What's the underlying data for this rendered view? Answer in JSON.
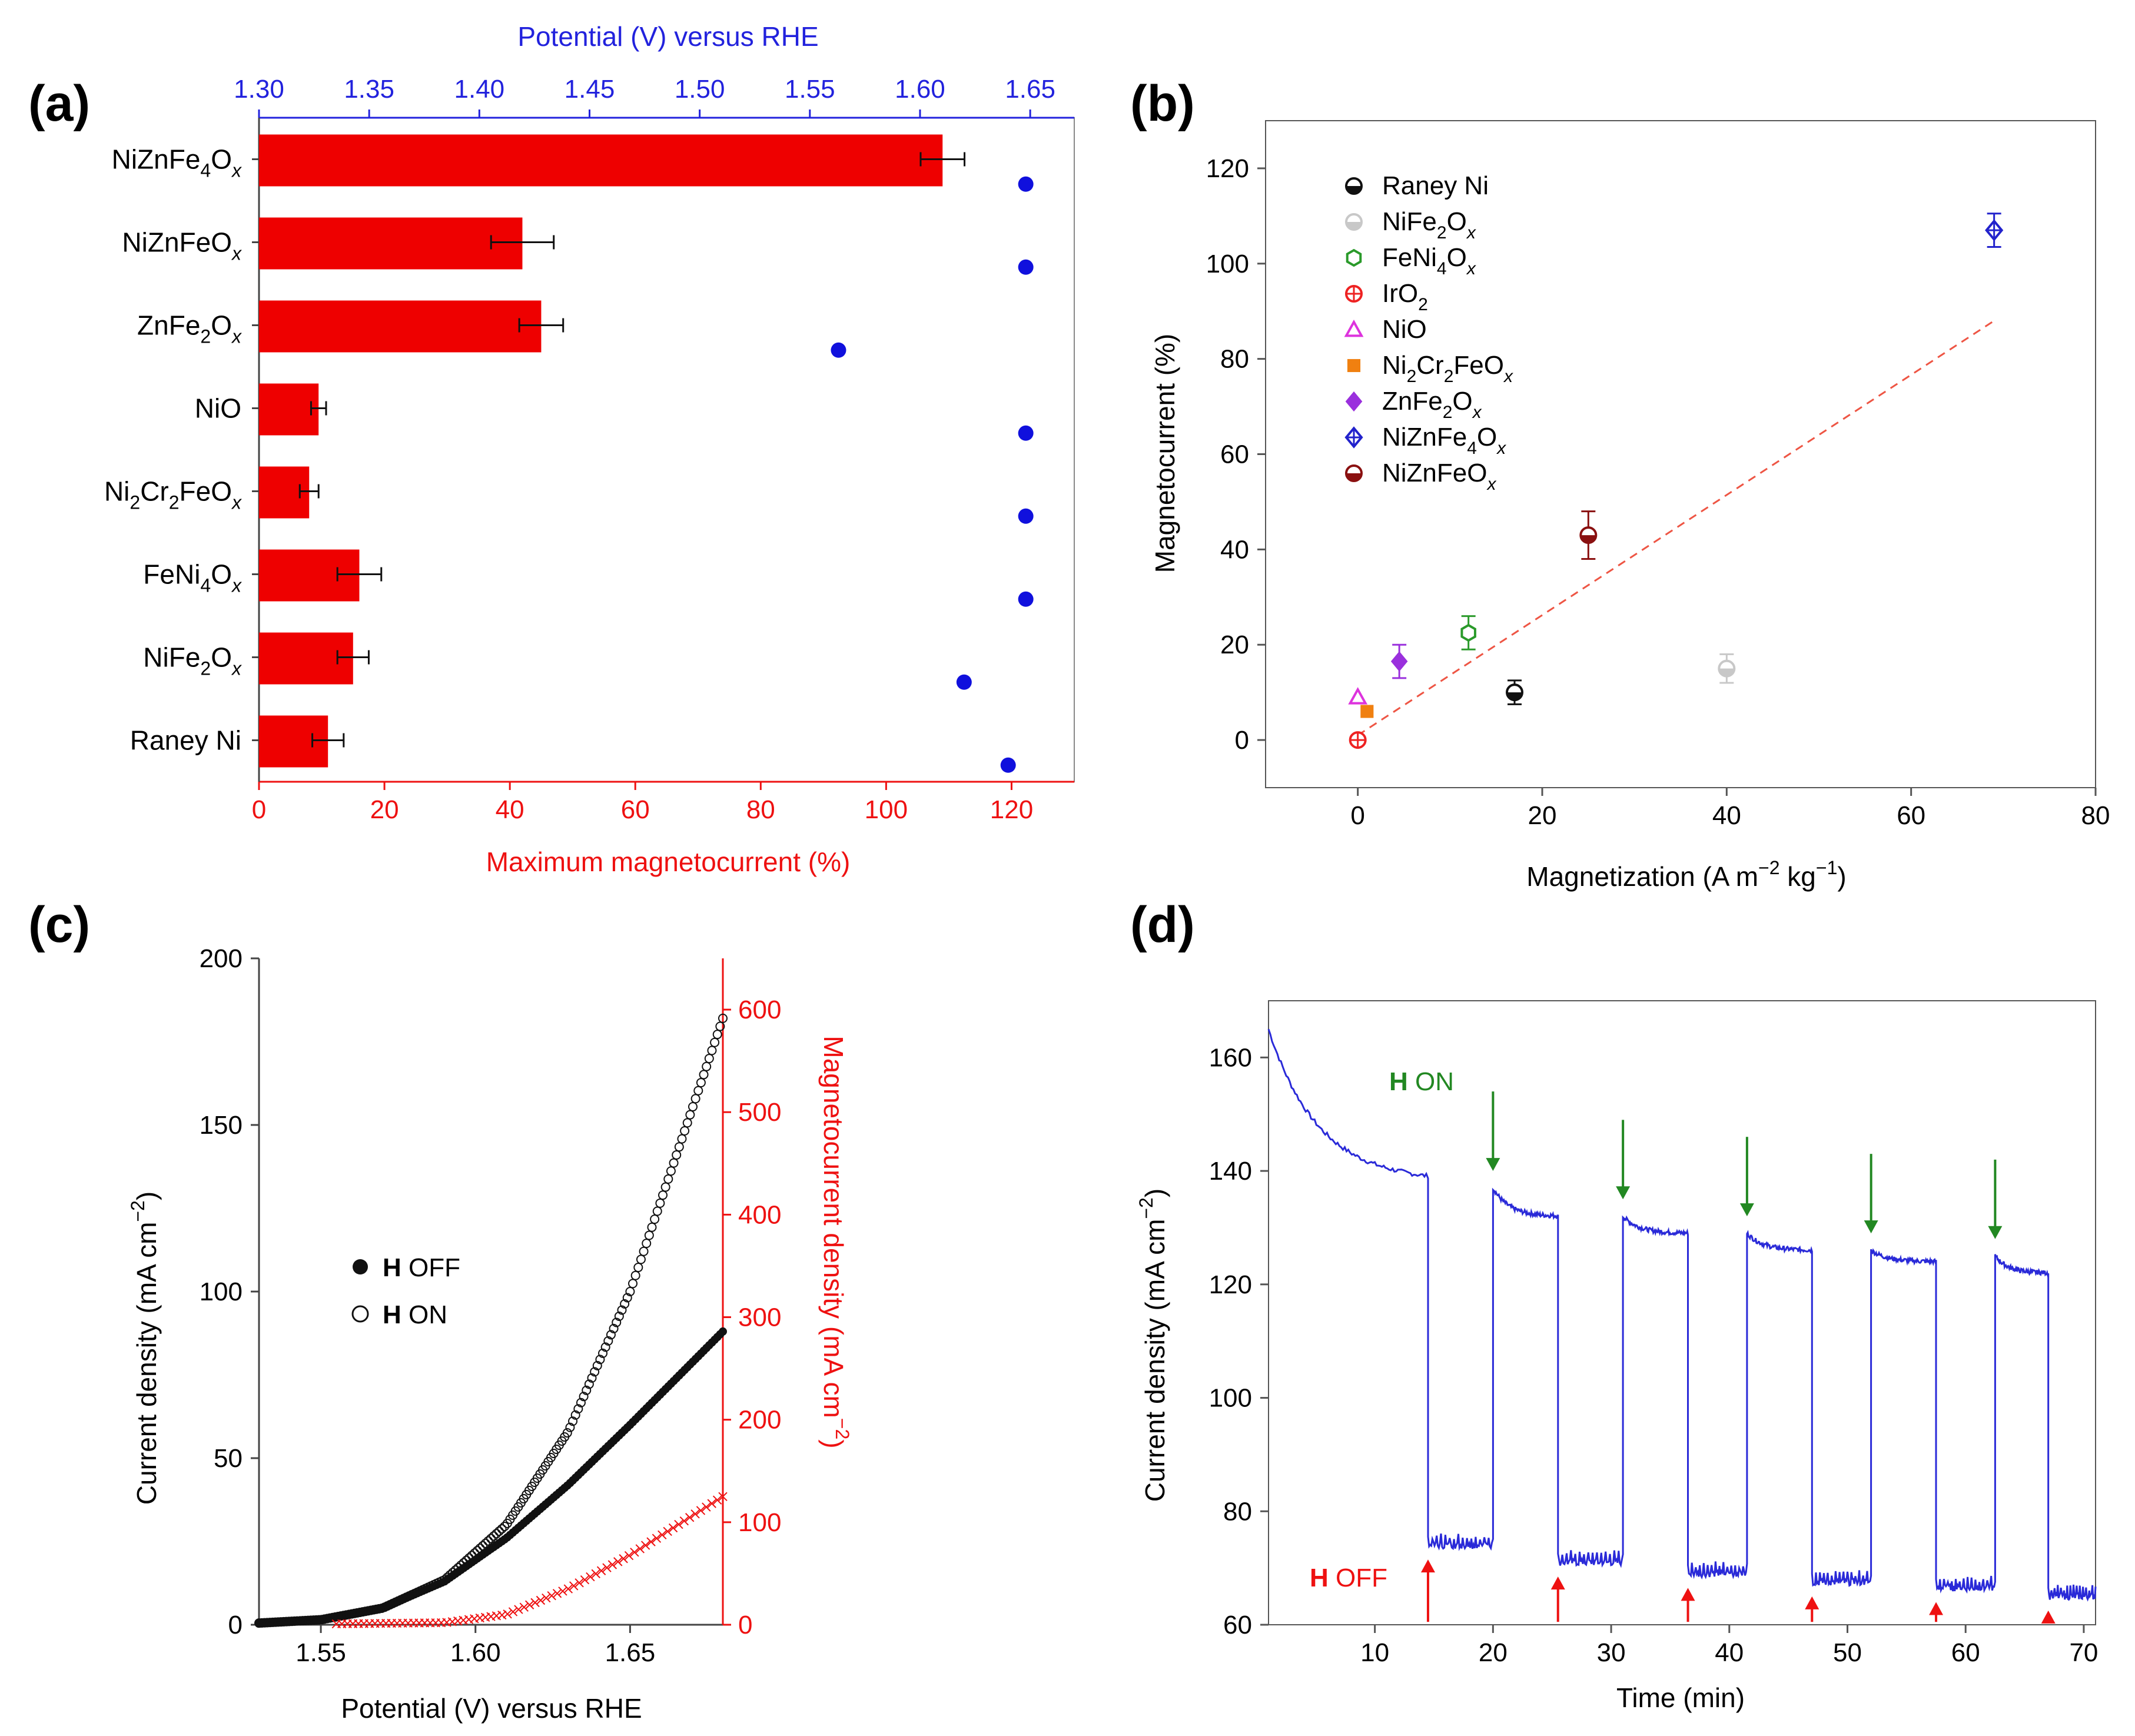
{
  "panel_labels": [
    "(a)",
    "(b)",
    "(c)",
    "(d)"
  ],
  "colors": {
    "bar": "#ee0000",
    "potential_dot": "#1010dd",
    "blue_axis": "#2222dd",
    "red_axis": "#ee1111",
    "fit_line": "#ee5544",
    "trace": "#2a2ad8",
    "on_arrow": "#228822",
    "off_arrow": "#ee1111"
  },
  "chart_data": [
    {
      "panel": "(a)",
      "type": "bar",
      "orientation": "horizontal",
      "categories": [
        {
          "base": "NiZnFe",
          "sub1": "4",
          "mid": "O",
          "sub2": "x"
        },
        {
          "base": "NiZnFeO",
          "sub1": "",
          "mid": "",
          "sub2": "x"
        },
        {
          "base": "ZnFe",
          "sub1": "2",
          "mid": "O",
          "sub2": "x"
        },
        {
          "base": "NiO",
          "sub1": "",
          "mid": "",
          "sub2": ""
        },
        {
          "base": "Ni",
          "sub1": "2",
          "mid": "Cr",
          "sub1b": "2",
          "tail": "FeO",
          "sub2": "x"
        },
        {
          "base": "FeNi",
          "sub1": "4",
          "mid": "O",
          "sub2": "x"
        },
        {
          "base": "NiFe",
          "sub1": "2",
          "mid": "O",
          "sub2": "x"
        },
        {
          "base": "Raney Ni",
          "sub1": "",
          "mid": "",
          "sub2": ""
        }
      ],
      "magnetocurrent": [
        109,
        42,
        45,
        9.5,
        8,
        16,
        15,
        11
      ],
      "magnetocurrent_err": [
        3.5,
        5,
        3.5,
        1.2,
        1.5,
        3.5,
        2.5,
        2.5
      ],
      "potential": [
        1.648,
        1.648,
        1.563,
        1.648,
        1.648,
        1.648,
        1.62,
        1.64
      ],
      "xlabel": "Maximum magnetocurrent (%)",
      "xlim": [
        0,
        130
      ],
      "xticks": [
        0,
        20,
        40,
        60,
        80,
        100,
        120
      ],
      "top_xlabel": "Potential (V) versus RHE",
      "top_xlim": [
        1.3,
        1.67
      ],
      "top_xticks": [
        "1.30",
        "1.35",
        "1.40",
        "1.45",
        "1.50",
        "1.55",
        "1.60",
        "1.65"
      ]
    },
    {
      "panel": "(b)",
      "type": "scatter",
      "xlabel_main": "Magnetization (A m",
      "xlabel_sup1": "−2",
      "xlabel_mid": " kg",
      "xlabel_sup2": "−1",
      "xlabel_end": ")",
      "ylabel": "Magnetocurrent (%)",
      "xlim": [
        -10,
        80
      ],
      "ylim": [
        -10,
        130
      ],
      "xticks": [
        0,
        20,
        40,
        60,
        80
      ],
      "yticks": [
        0,
        20,
        40,
        60,
        80,
        100,
        120
      ],
      "points": [
        {
          "name": "Raney Ni",
          "x": 17,
          "y": 10,
          "err": 2.5,
          "marker": "halfcircle",
          "color": "#111111"
        },
        {
          "name": "NiFe2Ox",
          "x": 40,
          "y": 15,
          "err": 3,
          "marker": "halfcircle",
          "color": "#c8c8c8"
        },
        {
          "name": "FeNi4Ox",
          "x": 12,
          "y": 22.5,
          "err": 3.5,
          "marker": "hexagon",
          "color": "#2a9a2a"
        },
        {
          "name": "IrO2",
          "x": 0,
          "y": 0,
          "err": 0,
          "marker": "circleplus",
          "color": "#ee2222"
        },
        {
          "name": "NiO",
          "x": 0,
          "y": 9,
          "err": 0,
          "marker": "triangle",
          "color": "#dd33dd"
        },
        {
          "name": "Ni2Cr2FeOx",
          "x": 1,
          "y": 6,
          "err": 0,
          "marker": "square",
          "color": "#f08010"
        },
        {
          "name": "ZnFe2Ox",
          "x": 4.5,
          "y": 16.5,
          "err": 3.5,
          "marker": "diamond",
          "color": "#9a30dd"
        },
        {
          "name": "NiZnFe4Ox",
          "x": 69,
          "y": 107,
          "err": 3.5,
          "marker": "diamondplus",
          "color": "#2222cc"
        },
        {
          "name": "NiZnFeOx",
          "x": 25,
          "y": 43,
          "err": 5,
          "marker": "halfcircle",
          "color": "#8a1010"
        }
      ],
      "fit_line": {
        "x": [
          0,
          69
        ],
        "y": [
          1,
          88
        ]
      },
      "legend": [
        {
          "base": "Raney Ni",
          "subs": []
        },
        {
          "base": "NiFe",
          "subs": [
            "2",
            "O",
            "x"
          ]
        },
        {
          "base": "FeNi",
          "subs": [
            "4",
            "O",
            "x"
          ]
        },
        {
          "base": "IrO",
          "subs": [
            "2"
          ]
        },
        {
          "base": "NiO",
          "subs": []
        },
        {
          "base": "Ni",
          "subs": [
            "2",
            "Cr",
            "2",
            "FeO",
            "x"
          ]
        },
        {
          "base": "ZnFe",
          "subs": [
            "2",
            "O",
            "x"
          ]
        },
        {
          "base": "NiZnFe",
          "subs": [
            "4",
            "O",
            "x"
          ]
        },
        {
          "base": "NiZnFeO",
          "subs": [
            "x"
          ]
        }
      ]
    },
    {
      "panel": "(c)",
      "type": "scatter",
      "xlabel": "Potential (V) versus RHE",
      "ylabel_main": "Current density (mA cm",
      "ylabel_sup": "−2",
      "ylabel_end": ")",
      "right_ylabel_main": "Magnetocurrent density (mA cm",
      "right_ylabel_sup": "−2",
      "right_ylabel_end": ")",
      "xlim": [
        1.53,
        1.68
      ],
      "ylim": [
        0,
        200
      ],
      "right_ylim": [
        0,
        650
      ],
      "xticks": [
        "1.55",
        "1.60",
        "1.65"
      ],
      "yticks": [
        0,
        50,
        100,
        150,
        200
      ],
      "right_yticks": [
        0,
        100,
        200,
        300,
        400,
        500,
        600
      ],
      "series": [
        {
          "name": "H OFF",
          "marker": "filled-circle",
          "onset": 1.53,
          "x": [
            1.53,
            1.55,
            1.57,
            1.59,
            1.61,
            1.63,
            1.65,
            1.68
          ],
          "y": [
            0.5,
            1.5,
            5,
            13,
            26,
            42,
            60,
            88
          ]
        },
        {
          "name": "H ON",
          "marker": "open-circle",
          "onset": 1.53,
          "x": [
            1.53,
            1.55,
            1.57,
            1.59,
            1.61,
            1.63,
            1.65,
            1.68
          ],
          "y": [
            0.5,
            1.5,
            5,
            13.5,
            30,
            58,
            100,
            182
          ]
        },
        {
          "name": "Magnetocurrent",
          "marker": "x",
          "axis": "right",
          "x": [
            1.53,
            1.59,
            1.61,
            1.63,
            1.65,
            1.68
          ],
          "y": [
            0,
            2,
            10,
            35,
            68,
            125
          ]
        }
      ],
      "legend": [
        {
          "bold": "H",
          "text": " OFF"
        },
        {
          "bold": "H",
          "text": " ON"
        }
      ]
    },
    {
      "panel": "(d)",
      "type": "line",
      "xlabel": "Time (min)",
      "ylabel_main": "Current density (mA cm",
      "ylabel_sup": "−2",
      "ylabel_end": ")",
      "xlim": [
        1,
        71
      ],
      "ylim": [
        60,
        170
      ],
      "xticks": [
        10,
        20,
        30,
        40,
        50,
        60,
        70
      ],
      "yticks": [
        60,
        80,
        100,
        120,
        140,
        160
      ],
      "high_segments": [
        {
          "t0": 1,
          "t1": 14.5,
          "start": 165,
          "end": 138
        },
        {
          "t0": 20,
          "t1": 25.5,
          "start": 137,
          "end": 132
        },
        {
          "t0": 31,
          "t1": 36.5,
          "start": 132,
          "end": 129
        },
        {
          "t0": 41.5,
          "t1": 47,
          "start": 129,
          "end": 126
        },
        {
          "t0": 52,
          "t1": 57.5,
          "start": 126,
          "end": 124
        },
        {
          "t0": 62.5,
          "t1": 67,
          "start": 125,
          "end": 122
        }
      ],
      "low_segments": [
        {
          "t0": 14.5,
          "t1": 20,
          "level": 74
        },
        {
          "t0": 25.5,
          "t1": 31,
          "level": 71
        },
        {
          "t0": 36.5,
          "t1": 41.5,
          "level": 69
        },
        {
          "t0": 47,
          "t1": 52,
          "level": 67.5
        },
        {
          "t0": 57.5,
          "t1": 62.5,
          "level": 66.5
        },
        {
          "t0": 67,
          "t1": 71,
          "level": 65
        }
      ],
      "on_arrows_t": [
        20,
        31,
        41.5,
        52,
        62.5
      ],
      "off_arrows_t": [
        14.5,
        25.5,
        36.5,
        47,
        57.5,
        67
      ],
      "on_label": {
        "bold": "H",
        "text": " ON"
      },
      "off_label": {
        "bold": "H",
        "text": " OFF"
      }
    }
  ]
}
